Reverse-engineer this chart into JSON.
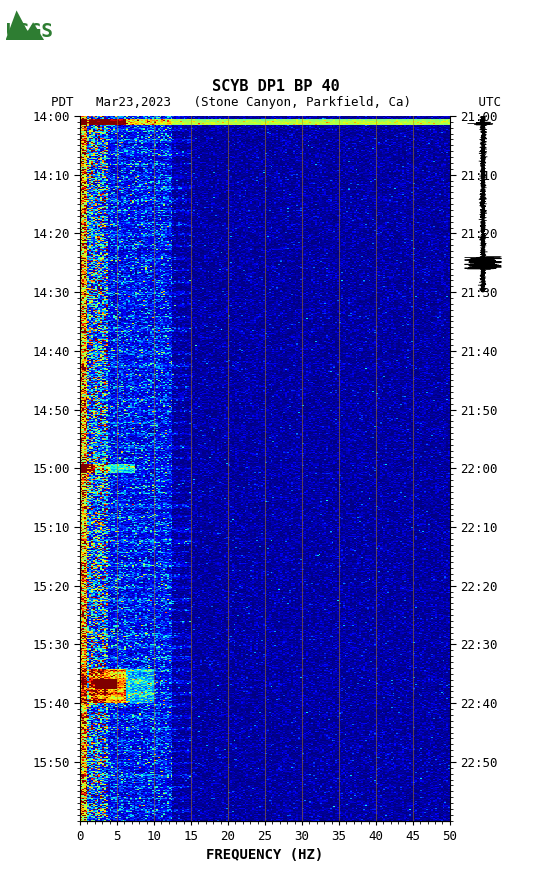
{
  "title_line1": "SCYB DP1 BP 40",
  "title_line2": "PDT   Mar23,2023   (Stone Canyon, Parkfield, Ca)         UTC",
  "xlabel": "FREQUENCY (HZ)",
  "ylabel_left": "PDT",
  "ylabel_right": "UTC",
  "freq_min": 0,
  "freq_max": 50,
  "time_start_pdt": "14:00",
  "time_end_pdt": "16:00",
  "time_start_utc": "21:00",
  "time_end_utc": "23:00",
  "pdt_ticks": [
    "14:00",
    "14:10",
    "14:20",
    "14:30",
    "14:40",
    "14:50",
    "15:00",
    "15:10",
    "15:20",
    "15:30",
    "15:40",
    "15:50"
  ],
  "utc_ticks": [
    "21:00",
    "21:10",
    "21:20",
    "21:30",
    "21:40",
    "21:50",
    "22:00",
    "22:10",
    "22:20",
    "22:30",
    "22:40",
    "22:50"
  ],
  "freq_ticks": [
    0,
    5,
    10,
    15,
    20,
    25,
    30,
    35,
    40,
    45,
    50
  ],
  "vertical_lines_freq": [
    5,
    10,
    15,
    20,
    25,
    30,
    35,
    40,
    45
  ],
  "bg_color": "#ffffff",
  "spectrogram_cmap": "jet",
  "n_freq_bins": 200,
  "n_time_bins": 720,
  "noise_seed": 42,
  "title_fontsize": 11,
  "tick_fontsize": 9,
  "label_fontsize": 10
}
